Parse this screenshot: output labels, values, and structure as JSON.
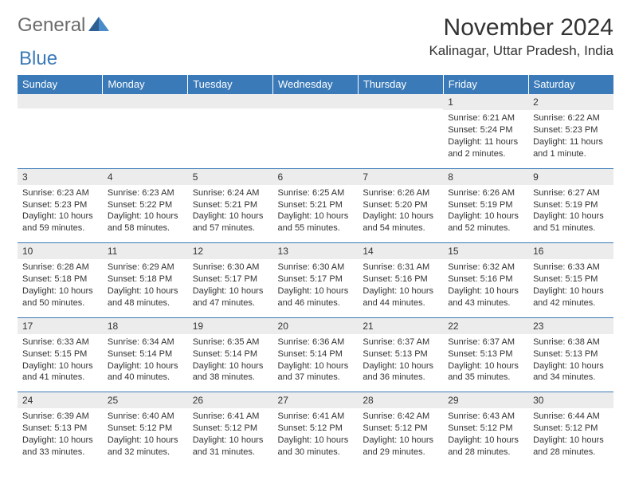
{
  "logo": {
    "general": "General",
    "blue": "Blue"
  },
  "title": "November 2024",
  "location": "Kalinagar, Uttar Pradesh, India",
  "colors": {
    "header_bg": "#3a7ab8",
    "header_text": "#ffffff",
    "daynum_bg": "#ececec",
    "border": "#3a7ab8",
    "body_text": "#333333",
    "logo_gray": "#6b6b6b",
    "logo_blue": "#3a7ab8",
    "page_bg": "#ffffff"
  },
  "fonts": {
    "title_pt": 30,
    "location_pt": 17,
    "th_pt": 13,
    "daynum_pt": 12,
    "cell_pt": 11
  },
  "weekdays": [
    "Sunday",
    "Monday",
    "Tuesday",
    "Wednesday",
    "Thursday",
    "Friday",
    "Saturday"
  ],
  "weeks": [
    [
      {
        "n": "",
        "lines": [
          "",
          "",
          ""
        ]
      },
      {
        "n": "",
        "lines": [
          "",
          "",
          ""
        ]
      },
      {
        "n": "",
        "lines": [
          "",
          "",
          ""
        ]
      },
      {
        "n": "",
        "lines": [
          "",
          "",
          ""
        ]
      },
      {
        "n": "",
        "lines": [
          "",
          "",
          ""
        ]
      },
      {
        "n": "1",
        "lines": [
          "Sunrise: 6:21 AM",
          "Sunset: 5:24 PM",
          "Daylight: 11 hours and 2 minutes."
        ]
      },
      {
        "n": "2",
        "lines": [
          "Sunrise: 6:22 AM",
          "Sunset: 5:23 PM",
          "Daylight: 11 hours and 1 minute."
        ]
      }
    ],
    [
      {
        "n": "3",
        "lines": [
          "Sunrise: 6:23 AM",
          "Sunset: 5:23 PM",
          "Daylight: 10 hours and 59 minutes."
        ]
      },
      {
        "n": "4",
        "lines": [
          "Sunrise: 6:23 AM",
          "Sunset: 5:22 PM",
          "Daylight: 10 hours and 58 minutes."
        ]
      },
      {
        "n": "5",
        "lines": [
          "Sunrise: 6:24 AM",
          "Sunset: 5:21 PM",
          "Daylight: 10 hours and 57 minutes."
        ]
      },
      {
        "n": "6",
        "lines": [
          "Sunrise: 6:25 AM",
          "Sunset: 5:21 PM",
          "Daylight: 10 hours and 55 minutes."
        ]
      },
      {
        "n": "7",
        "lines": [
          "Sunrise: 6:26 AM",
          "Sunset: 5:20 PM",
          "Daylight: 10 hours and 54 minutes."
        ]
      },
      {
        "n": "8",
        "lines": [
          "Sunrise: 6:26 AM",
          "Sunset: 5:19 PM",
          "Daylight: 10 hours and 52 minutes."
        ]
      },
      {
        "n": "9",
        "lines": [
          "Sunrise: 6:27 AM",
          "Sunset: 5:19 PM",
          "Daylight: 10 hours and 51 minutes."
        ]
      }
    ],
    [
      {
        "n": "10",
        "lines": [
          "Sunrise: 6:28 AM",
          "Sunset: 5:18 PM",
          "Daylight: 10 hours and 50 minutes."
        ]
      },
      {
        "n": "11",
        "lines": [
          "Sunrise: 6:29 AM",
          "Sunset: 5:18 PM",
          "Daylight: 10 hours and 48 minutes."
        ]
      },
      {
        "n": "12",
        "lines": [
          "Sunrise: 6:30 AM",
          "Sunset: 5:17 PM",
          "Daylight: 10 hours and 47 minutes."
        ]
      },
      {
        "n": "13",
        "lines": [
          "Sunrise: 6:30 AM",
          "Sunset: 5:17 PM",
          "Daylight: 10 hours and 46 minutes."
        ]
      },
      {
        "n": "14",
        "lines": [
          "Sunrise: 6:31 AM",
          "Sunset: 5:16 PM",
          "Daylight: 10 hours and 44 minutes."
        ]
      },
      {
        "n": "15",
        "lines": [
          "Sunrise: 6:32 AM",
          "Sunset: 5:16 PM",
          "Daylight: 10 hours and 43 minutes."
        ]
      },
      {
        "n": "16",
        "lines": [
          "Sunrise: 6:33 AM",
          "Sunset: 5:15 PM",
          "Daylight: 10 hours and 42 minutes."
        ]
      }
    ],
    [
      {
        "n": "17",
        "lines": [
          "Sunrise: 6:33 AM",
          "Sunset: 5:15 PM",
          "Daylight: 10 hours and 41 minutes."
        ]
      },
      {
        "n": "18",
        "lines": [
          "Sunrise: 6:34 AM",
          "Sunset: 5:14 PM",
          "Daylight: 10 hours and 40 minutes."
        ]
      },
      {
        "n": "19",
        "lines": [
          "Sunrise: 6:35 AM",
          "Sunset: 5:14 PM",
          "Daylight: 10 hours and 38 minutes."
        ]
      },
      {
        "n": "20",
        "lines": [
          "Sunrise: 6:36 AM",
          "Sunset: 5:14 PM",
          "Daylight: 10 hours and 37 minutes."
        ]
      },
      {
        "n": "21",
        "lines": [
          "Sunrise: 6:37 AM",
          "Sunset: 5:13 PM",
          "Daylight: 10 hours and 36 minutes."
        ]
      },
      {
        "n": "22",
        "lines": [
          "Sunrise: 6:37 AM",
          "Sunset: 5:13 PM",
          "Daylight: 10 hours and 35 minutes."
        ]
      },
      {
        "n": "23",
        "lines": [
          "Sunrise: 6:38 AM",
          "Sunset: 5:13 PM",
          "Daylight: 10 hours and 34 minutes."
        ]
      }
    ],
    [
      {
        "n": "24",
        "lines": [
          "Sunrise: 6:39 AM",
          "Sunset: 5:13 PM",
          "Daylight: 10 hours and 33 minutes."
        ]
      },
      {
        "n": "25",
        "lines": [
          "Sunrise: 6:40 AM",
          "Sunset: 5:12 PM",
          "Daylight: 10 hours and 32 minutes."
        ]
      },
      {
        "n": "26",
        "lines": [
          "Sunrise: 6:41 AM",
          "Sunset: 5:12 PM",
          "Daylight: 10 hours and 31 minutes."
        ]
      },
      {
        "n": "27",
        "lines": [
          "Sunrise: 6:41 AM",
          "Sunset: 5:12 PM",
          "Daylight: 10 hours and 30 minutes."
        ]
      },
      {
        "n": "28",
        "lines": [
          "Sunrise: 6:42 AM",
          "Sunset: 5:12 PM",
          "Daylight: 10 hours and 29 minutes."
        ]
      },
      {
        "n": "29",
        "lines": [
          "Sunrise: 6:43 AM",
          "Sunset: 5:12 PM",
          "Daylight: 10 hours and 28 minutes."
        ]
      },
      {
        "n": "30",
        "lines": [
          "Sunrise: 6:44 AM",
          "Sunset: 5:12 PM",
          "Daylight: 10 hours and 28 minutes."
        ]
      }
    ]
  ]
}
